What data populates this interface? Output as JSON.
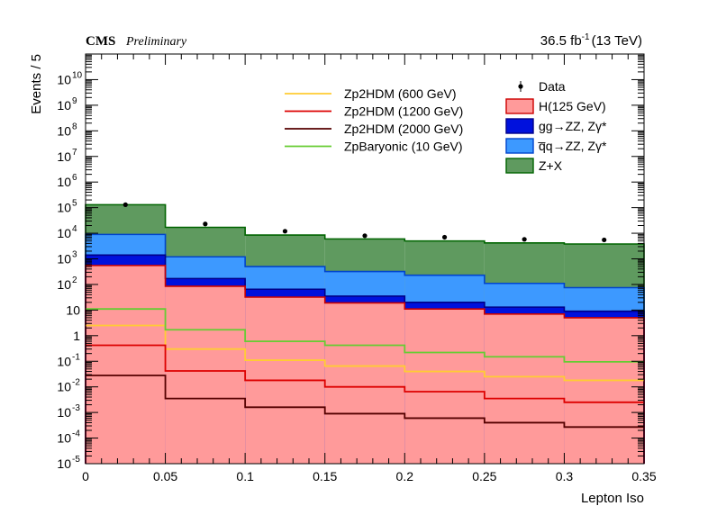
{
  "chart_data": {
    "type": "bar",
    "subtype": "stacked-step-histogram",
    "experiment": "CMS",
    "experiment_tag": "Preliminary",
    "luminosity": "36.5 fb",
    "luminosity_exp": "-1",
    "energy": "(13 TeV)",
    "xlabel": "Lepton Iso",
    "ylabel": "Events / 5",
    "xlim": [
      0,
      0.35
    ],
    "ylim": [
      1e-05,
      100000000000
    ],
    "log_y": true,
    "grid": false,
    "legend_position": "top-right",
    "x_ticks": [
      {
        "v": 0,
        "label": "0"
      },
      {
        "v": 0.05,
        "label": "0.05"
      },
      {
        "v": 0.1,
        "label": "0.1"
      },
      {
        "v": 0.15,
        "label": "0.15"
      },
      {
        "v": 0.2,
        "label": "0.2"
      },
      {
        "v": 0.25,
        "label": "0.25"
      },
      {
        "v": 0.3,
        "label": "0.3"
      },
      {
        "v": 0.35,
        "label": "0.35"
      }
    ],
    "y_ticks": [
      {
        "exp": -5,
        "label": "10",
        "sup": "-5"
      },
      {
        "exp": -4,
        "label": "10",
        "sup": "-4"
      },
      {
        "exp": -3,
        "label": "10",
        "sup": "-3"
      },
      {
        "exp": -2,
        "label": "10",
        "sup": "-2"
      },
      {
        "exp": -1,
        "label": "10",
        "sup": "-1"
      },
      {
        "exp": 0,
        "label": "1",
        "sup": ""
      },
      {
        "exp": 1,
        "label": "10",
        "sup": ""
      },
      {
        "exp": 2,
        "label": "10",
        "sup": "2"
      },
      {
        "exp": 3,
        "label": "10",
        "sup": "3"
      },
      {
        "exp": 4,
        "label": "10",
        "sup": "4"
      },
      {
        "exp": 5,
        "label": "10",
        "sup": "5"
      },
      {
        "exp": 6,
        "label": "10",
        "sup": "6"
      },
      {
        "exp": 7,
        "label": "10",
        "sup": "7"
      },
      {
        "exp": 8,
        "label": "10",
        "sup": "8"
      },
      {
        "exp": 9,
        "label": "10",
        "sup": "9"
      },
      {
        "exp": 10,
        "label": "10",
        "sup": "10"
      }
    ],
    "bin_edges": [
      0,
      0.05,
      0.1,
      0.15,
      0.2,
      0.25,
      0.3,
      0.35
    ],
    "stack": [
      {
        "name": "Z+X",
        "key": "zx",
        "color": "#5f9a5f",
        "edge": "#006400",
        "cumulative": [
          130000,
          17000,
          8500,
          6000,
          5000,
          4200,
          3800
        ]
      },
      {
        "name": "q̅q→ZZ, Zγ*",
        "key": "qqzz",
        "color": "#3d99ff",
        "edge": "#0044cc",
        "cumulative": [
          9000,
          1200,
          500,
          320,
          230,
          110,
          75
        ]
      },
      {
        "name": "gg→ZZ, Zγ*",
        "key": "ggzz",
        "color": "#0011dd",
        "edge": "#000088",
        "cumulative": [
          1400,
          170,
          65,
          35,
          20,
          13,
          9
        ]
      },
      {
        "name": "H(125 GeV)",
        "key": "higgs",
        "color": "#ff9a9a",
        "edge": "#cc0000",
        "cumulative": [
          550,
          85,
          32,
          19,
          11,
          7,
          5
        ]
      }
    ],
    "signals": [
      {
        "name": "Zp2HDM (600 GeV)",
        "color": "#ffcc33",
        "values": [
          2.5,
          0.3,
          0.11,
          0.065,
          0.04,
          0.025,
          0.018
        ]
      },
      {
        "name": "Zp2HDM (1200 GeV)",
        "color": "#dd0000",
        "values": [
          0.42,
          0.042,
          0.018,
          0.01,
          0.0065,
          0.0035,
          0.0025
        ]
      },
      {
        "name": "Zp2HDM (2000 GeV)",
        "color": "#550000",
        "values": [
          0.028,
          0.0035,
          0.0016,
          0.0009,
          0.0006,
          0.0004,
          0.00027
        ]
      },
      {
        "name": "ZpBaryonic (10 GeV)",
        "color": "#66cc33",
        "values": [
          11,
          1.7,
          0.6,
          0.42,
          0.22,
          0.15,
          0.095
        ]
      }
    ],
    "data": {
      "name": "Data",
      "x": [
        0.025,
        0.075,
        0.125,
        0.175,
        0.225,
        0.275,
        0.325
      ],
      "y": [
        130000,
        23000,
        12000,
        8000,
        7000,
        5800,
        5500
      ]
    },
    "legend_left": [
      "Zp2HDM (600 GeV)",
      "Zp2HDM (1200 GeV)",
      "Zp2HDM (2000 GeV)",
      "ZpBaryonic (10 GeV)"
    ],
    "legend_right": [
      "Data",
      "H(125 GeV)",
      "gg→ZZ, Zγ*",
      "q̅q→ZZ, Zγ*",
      "Z+X"
    ]
  }
}
